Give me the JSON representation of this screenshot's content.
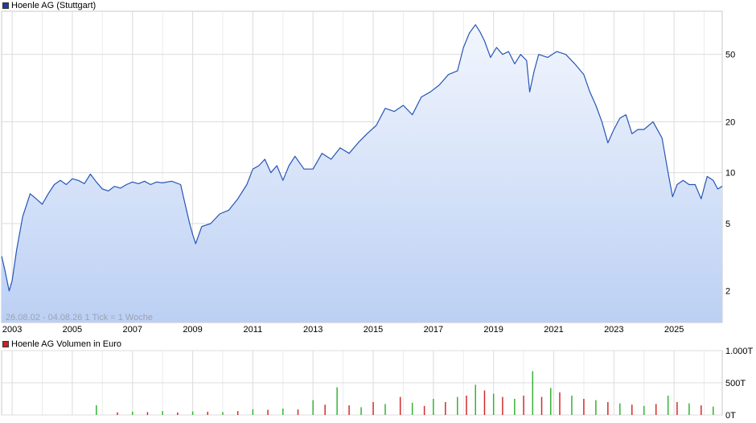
{
  "chart_data": [
    {
      "type": "area",
      "title": "Hoenle AG (Stuttgart)",
      "legend_color": "#1f3f99",
      "line_color": "#2655b4",
      "fill_top_color": "#f2f6fd",
      "fill_bottom_color": "#bcd0f4",
      "y_scale": "log",
      "ylim": [
        1.3,
        90
      ],
      "xlim": [
        2002.65,
        2026.6
      ],
      "grid": true,
      "yticks": [
        2,
        5,
        10,
        20,
        50
      ],
      "ytick_labels": [
        "2",
        "5",
        "10",
        "20",
        "50"
      ],
      "xticks": [
        2003,
        2005,
        2007,
        2009,
        2011,
        2013,
        2015,
        2017,
        2019,
        2021,
        2023,
        2025
      ],
      "xtick_labels": [
        "2003",
        "2005",
        "2007",
        "2009",
        "2011",
        "2013",
        "2015",
        "2017",
        "2019",
        "2021",
        "2023",
        "2025"
      ],
      "range_text": "26.08.02 - 04.08.26   1 Tick = 1 Woche",
      "series": [
        {
          "name": "Hoenle AG (Stuttgart)",
          "x": [
            2002.65,
            2002.75,
            2002.9,
            2003.0,
            2003.15,
            2003.35,
            2003.6,
            2003.8,
            2004.0,
            2004.2,
            2004.4,
            2004.6,
            2004.8,
            2005.0,
            2005.2,
            2005.4,
            2005.6,
            2005.8,
            2006.0,
            2006.2,
            2006.4,
            2006.6,
            2006.8,
            2007.0,
            2007.2,
            2007.4,
            2007.6,
            2007.8,
            2008.0,
            2008.3,
            2008.6,
            2008.75,
            2008.9,
            2009.0,
            2009.1,
            2009.3,
            2009.6,
            2009.9,
            2010.2,
            2010.5,
            2010.8,
            2011.0,
            2011.2,
            2011.4,
            2011.6,
            2011.8,
            2012.0,
            2012.2,
            2012.4,
            2012.7,
            2013.0,
            2013.3,
            2013.6,
            2013.9,
            2014.2,
            2014.5,
            2014.8,
            2015.1,
            2015.4,
            2015.7,
            2016.0,
            2016.3,
            2016.6,
            2016.9,
            2017.2,
            2017.5,
            2017.8,
            2018.0,
            2018.2,
            2018.4,
            2018.55,
            2018.7,
            2018.9,
            2019.1,
            2019.3,
            2019.5,
            2019.7,
            2019.9,
            2020.1,
            2020.2,
            2020.35,
            2020.5,
            2020.8,
            2021.1,
            2021.4,
            2021.7,
            2022.0,
            2022.2,
            2022.4,
            2022.6,
            2022.8,
            2023.0,
            2023.2,
            2023.4,
            2023.6,
            2023.8,
            2024.0,
            2024.3,
            2024.6,
            2024.8,
            2024.95,
            2025.1,
            2025.3,
            2025.5,
            2025.7,
            2025.9,
            2026.1,
            2026.3,
            2026.45,
            2026.6
          ],
          "values": [
            3.2,
            2.7,
            2.0,
            2.3,
            3.5,
            5.5,
            7.5,
            7.0,
            6.5,
            7.5,
            8.5,
            9.0,
            8.5,
            9.2,
            9.0,
            8.6,
            9.8,
            8.8,
            8.0,
            7.8,
            8.3,
            8.1,
            8.5,
            8.8,
            8.6,
            8.9,
            8.5,
            8.8,
            8.7,
            8.9,
            8.5,
            6.5,
            5.0,
            4.3,
            3.8,
            4.8,
            5.0,
            5.7,
            6.0,
            7.0,
            8.5,
            10.5,
            11.0,
            12.0,
            10.0,
            11.0,
            9.0,
            11.0,
            12.5,
            10.5,
            10.5,
            13.0,
            12.0,
            14.0,
            13.0,
            15.0,
            17.0,
            19.0,
            24.0,
            23.0,
            25.0,
            22.0,
            28.0,
            30.0,
            33.0,
            38.0,
            40.0,
            55.0,
            67.0,
            75.0,
            68.0,
            60.0,
            48.0,
            55.0,
            50.0,
            52.0,
            44.0,
            50.0,
            46.0,
            30.0,
            40.0,
            50.0,
            48.0,
            52.0,
            50.0,
            44.0,
            38.0,
            30.0,
            25.0,
            20.0,
            15.0,
            18.0,
            21.0,
            22.0,
            17.0,
            18.0,
            18.0,
            20.0,
            16.0,
            10.0,
            7.2,
            8.5,
            9.0,
            8.5,
            8.5,
            7.0,
            9.5,
            9.0,
            8.0,
            8.3
          ]
        }
      ]
    },
    {
      "type": "bar",
      "title": "Hoenle AG Volumen in Euro",
      "legend_color": "#cc2222",
      "up_color": "#35b235",
      "down_color": "#d42a2a",
      "ylim": [
        0,
        1000
      ],
      "yticks": [
        0,
        500,
        1000
      ],
      "ytick_labels": [
        "0T",
        "500T",
        "1.000T"
      ],
      "grid": true,
      "unit": "T",
      "series": [
        {
          "name": "Hoenle AG Volumen in Euro",
          "x": [
            2005.8,
            2006.5,
            2007.0,
            2007.5,
            2008.0,
            2008.5,
            2009.0,
            2009.5,
            2010.0,
            2010.5,
            2011.0,
            2011.5,
            2012.0,
            2012.5,
            2013.0,
            2013.4,
            2013.8,
            2014.2,
            2014.6,
            2015.0,
            2015.4,
            2015.9,
            2016.3,
            2016.7,
            2017.0,
            2017.4,
            2017.8,
            2018.1,
            2018.4,
            2018.7,
            2019.0,
            2019.3,
            2019.7,
            2020.0,
            2020.3,
            2020.6,
            2020.9,
            2021.2,
            2021.6,
            2022.0,
            2022.4,
            2022.8,
            2023.2,
            2023.6,
            2024.0,
            2024.4,
            2024.8,
            2025.1,
            2025.5,
            2025.9,
            2026.3
          ],
          "values": [
            150,
            40,
            50,
            45,
            60,
            40,
            55,
            50,
            45,
            60,
            90,
            80,
            100,
            85,
            230,
            160,
            430,
            150,
            120,
            200,
            170,
            280,
            190,
            140,
            250,
            200,
            280,
            300,
            470,
            380,
            330,
            280,
            250,
            300,
            680,
            280,
            420,
            350,
            300,
            250,
            230,
            200,
            180,
            160,
            140,
            170,
            300,
            200,
            180,
            150,
            130
          ]
        }
      ]
    }
  ]
}
